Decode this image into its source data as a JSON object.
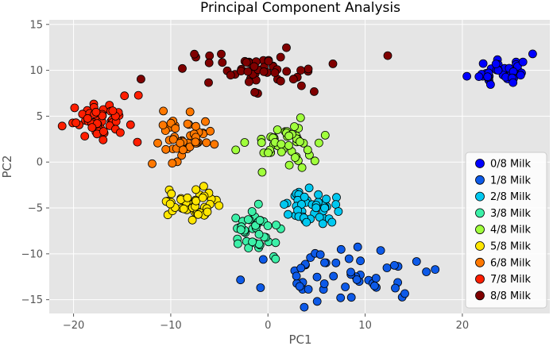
{
  "chart_data": {
    "type": "scatter",
    "title": "Principal Component Analysis",
    "xlabel": "PC1",
    "ylabel": "PC2",
    "xlim": [
      -22.5,
      29
    ],
    "ylim": [
      -16.5,
      15.5
    ],
    "xticks": [
      -20,
      -10,
      0,
      10,
      20
    ],
    "yticks": [
      -15,
      -10,
      -5,
      0,
      5,
      10,
      15
    ],
    "grid": true,
    "legend_position": "lower-right",
    "series": [
      {
        "name": "0/8 Milk",
        "color": "#0000ff",
        "center": [
          24,
          10
        ],
        "spread": [
          1.4,
          0.9
        ],
        "count": 40,
        "seed": 11
      },
      {
        "name": "1/8 Milk",
        "color": "#0d5ae8",
        "center": [
          8,
          -12.5
        ],
        "spread": [
          4.0,
          1.3
        ],
        "count": 55,
        "seed": 23
      },
      {
        "name": "2/8 Milk",
        "color": "#00c8f0",
        "center": [
          4.5,
          -5
        ],
        "spread": [
          1.2,
          0.9
        ],
        "count": 45,
        "seed": 37
      },
      {
        "name": "3/8 Milk",
        "color": "#3cf0a8",
        "center": [
          -1,
          -7.5
        ],
        "spread": [
          1.4,
          1.2
        ],
        "count": 45,
        "seed": 41
      },
      {
        "name": "4/8 Milk",
        "color": "#a0ff3c",
        "center": [
          2,
          2
        ],
        "spread": [
          2.0,
          1.3
        ],
        "count": 48,
        "seed": 53
      },
      {
        "name": "5/8 Milk",
        "color": "#ffe600",
        "center": [
          -8,
          -4.5
        ],
        "spread": [
          1.6,
          1.0
        ],
        "count": 45,
        "seed": 61
      },
      {
        "name": "6/8 Milk",
        "color": "#ff7800",
        "center": [
          -8.5,
          2.5
        ],
        "spread": [
          1.6,
          1.3
        ],
        "count": 48,
        "seed": 71
      },
      {
        "name": "7/8 Milk",
        "color": "#ff1e00",
        "center": [
          -17,
          4.5
        ],
        "spread": [
          1.5,
          1.1
        ],
        "count": 55,
        "seed": 83
      },
      {
        "name": "8/8 Milk",
        "color": "#800000",
        "center": [
          -3,
          10
        ],
        "spread": [
          5.0,
          1.2
        ],
        "count": 55,
        "seed": 97
      }
    ]
  }
}
